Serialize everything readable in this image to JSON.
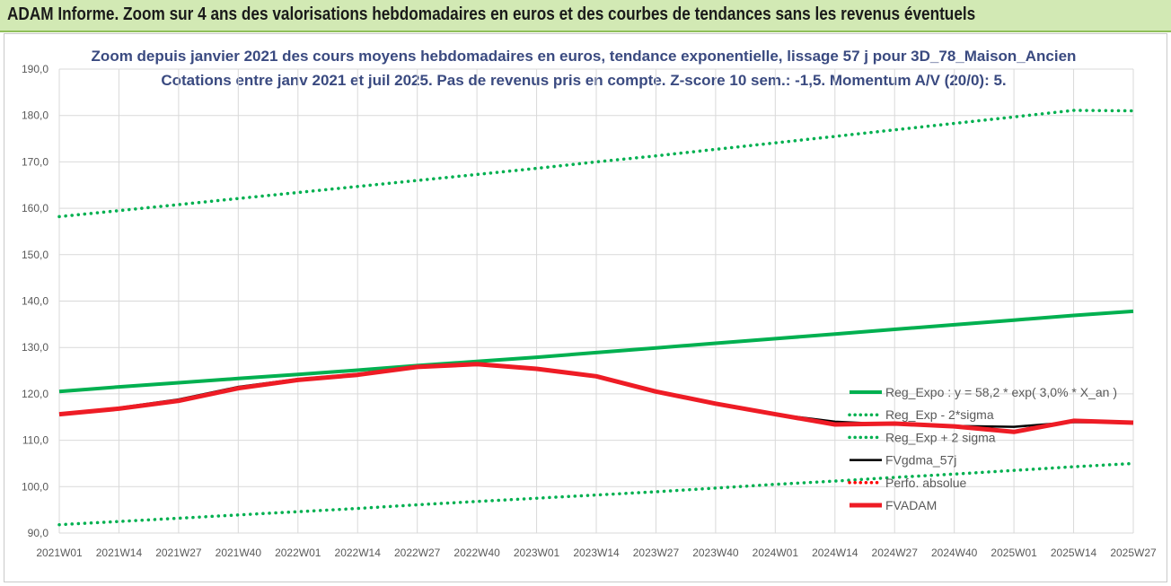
{
  "banner": {
    "title": "ADAM Informe. Zoom sur 4 ans des valorisations hebdomadaires en euros et des courbes de tendances sans les revenus éventuels"
  },
  "chart_data": {
    "type": "line",
    "title_lines": [
      "Zoom depuis janvier 2021 des cours moyens hebdomadaires en euros, tendance exponentielle, lissage 57 j pour 3D_78_Maison_Ancien",
      "Cotations entre janv 2021 et juil 2025. Pas de revenus pris en compte. Z-score 10 sem.: -1,5. Momentum A/V (20/0): 5."
    ],
    "xlabel": "",
    "ylabel": "",
    "ylim": [
      90,
      190
    ],
    "y_ticks": [
      "190,0",
      "180,0",
      "170,0",
      "160,0",
      "150,0",
      "140,0",
      "130,0",
      "120,0",
      "110,0",
      "100,0",
      "90,0"
    ],
    "x_ticks": [
      "2021W01",
      "2021W14",
      "2021W27",
      "2021W40",
      "2022W01",
      "2022W14",
      "2022W27",
      "2022W40",
      "2023W01",
      "2023W14",
      "2023W27",
      "2023W40",
      "2024W01",
      "2024W14",
      "2024W27",
      "2024W40",
      "2025W01",
      "2025W14",
      "2025W27"
    ],
    "grid": true,
    "legend_position": "bottom-right",
    "series": [
      {
        "name": "Reg_Expo : y = 58,2 * exp( 3,0% *  X_an )",
        "color": "#00b050",
        "style": "solid",
        "values": [
          120.5,
          121.5,
          122.4,
          123.3,
          124.2,
          125.1,
          126.1,
          127.0,
          127.9,
          128.9,
          129.9,
          130.9,
          131.9,
          132.9,
          133.9,
          134.9,
          135.9,
          136.9,
          137.8
        ]
      },
      {
        "name": "Reg_Exp - 2*sigma",
        "color": "#00b050",
        "style": "dotted",
        "values": [
          91.8,
          92.5,
          93.2,
          93.9,
          94.6,
          95.3,
          96.1,
          96.8,
          97.5,
          98.2,
          98.9,
          99.7,
          100.5,
          101.2,
          102.0,
          102.7,
          103.5,
          104.3,
          105.0
        ]
      },
      {
        "name": "Reg_Exp + 2 sigma",
        "color": "#00b050",
        "style": "dotted",
        "values": [
          158.2,
          159.5,
          160.8,
          162.1,
          163.4,
          164.7,
          166.0,
          167.3,
          168.6,
          170.0,
          171.3,
          172.7,
          174.1,
          175.5,
          176.9,
          178.3,
          179.7,
          181.1,
          181.0
        ]
      },
      {
        "name": "FVgdma_57j",
        "color": "#000000",
        "style": "solid",
        "values": [
          115.6,
          117.0,
          118.8,
          121.5,
          123.2,
          124.3,
          125.9,
          126.2,
          125.3,
          123.6,
          120.3,
          117.8,
          115.6,
          114.0,
          113.4,
          113.1,
          112.9,
          113.9,
          113.8
        ]
      },
      {
        "name": "Perfo. absolue",
        "color": "#ff0000",
        "style": "dotted",
        "values": []
      },
      {
        "name": "FVADAM",
        "color": "#ee1c25",
        "style": "solid",
        "values": [
          115.6,
          116.8,
          118.5,
          121.2,
          123.0,
          124.1,
          125.8,
          126.4,
          125.4,
          123.8,
          120.5,
          117.9,
          115.6,
          113.4,
          113.6,
          113.0,
          111.8,
          114.2,
          113.8
        ]
      }
    ]
  }
}
